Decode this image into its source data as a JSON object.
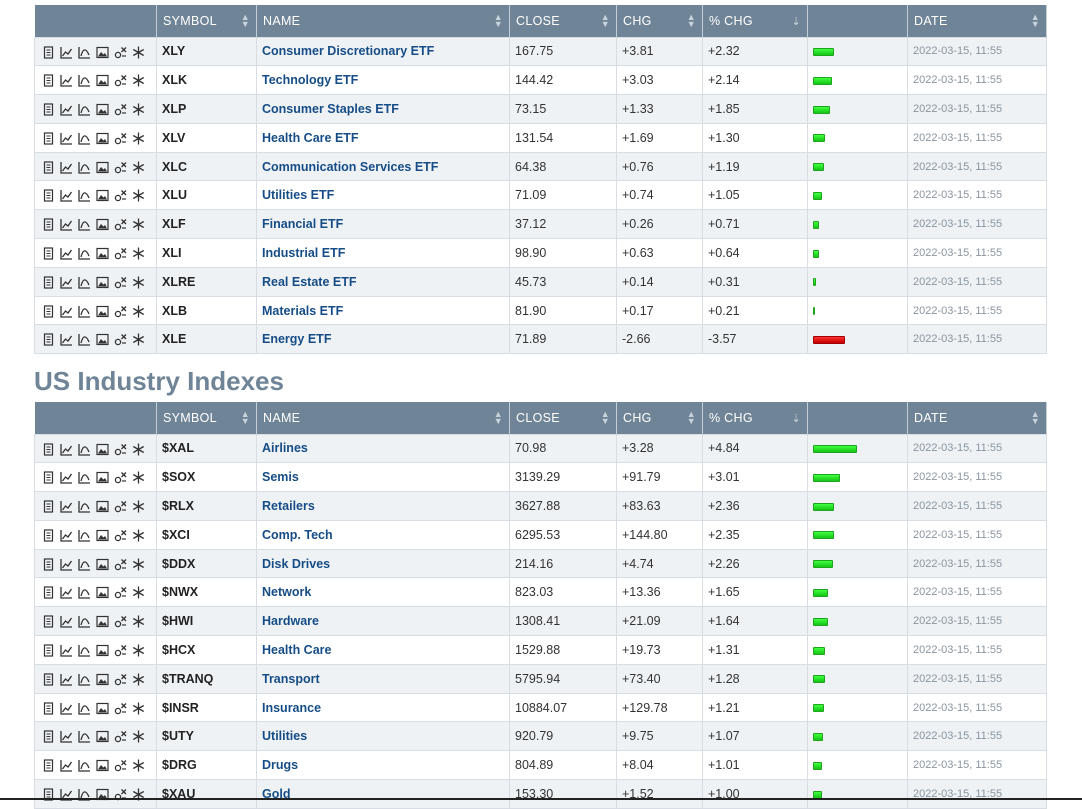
{
  "headers": {
    "symbol": "SYMBOL",
    "name": "NAME",
    "close": "CLOSE",
    "chg": "CHG",
    "pct_chg": "% CHG",
    "date": "DATE"
  },
  "row_icons": [
    "quote-icon",
    "chart-icon",
    "technical-chart-icon",
    "image-chart-icon",
    "options-icon",
    "snowflake-icon"
  ],
  "colors": {
    "header_bg": "#6f8597",
    "link": "#164d86",
    "bar_positive": "#22dd22",
    "bar_negative": "#dd0000"
  },
  "sector_etfs": {
    "rows": [
      {
        "symbol": "XLY",
        "name": "Consumer Discretionary ETF",
        "close": "167.75",
        "chg": "+3.81",
        "pct": "+2.32",
        "pct_value": 2.32,
        "date": "2022-03-15, 11:55"
      },
      {
        "symbol": "XLK",
        "name": "Technology ETF",
        "close": "144.42",
        "chg": "+3.03",
        "pct": "+2.14",
        "pct_value": 2.14,
        "date": "2022-03-15, 11:55"
      },
      {
        "symbol": "XLP",
        "name": "Consumer Staples ETF",
        "close": "73.15",
        "chg": "+1.33",
        "pct": "+1.85",
        "pct_value": 1.85,
        "date": "2022-03-15, 11:55"
      },
      {
        "symbol": "XLV",
        "name": "Health Care ETF",
        "close": "131.54",
        "chg": "+1.69",
        "pct": "+1.30",
        "pct_value": 1.3,
        "date": "2022-03-15, 11:55"
      },
      {
        "symbol": "XLC",
        "name": "Communication Services ETF",
        "close": "64.38",
        "chg": "+0.76",
        "pct": "+1.19",
        "pct_value": 1.19,
        "date": "2022-03-15, 11:55"
      },
      {
        "symbol": "XLU",
        "name": "Utilities ETF",
        "close": "71.09",
        "chg": "+0.74",
        "pct": "+1.05",
        "pct_value": 1.05,
        "date": "2022-03-15, 11:55"
      },
      {
        "symbol": "XLF",
        "name": "Financial ETF",
        "close": "37.12",
        "chg": "+0.26",
        "pct": "+0.71",
        "pct_value": 0.71,
        "date": "2022-03-15, 11:55"
      },
      {
        "symbol": "XLI",
        "name": "Industrial ETF",
        "close": "98.90",
        "chg": "+0.63",
        "pct": "+0.64",
        "pct_value": 0.64,
        "date": "2022-03-15, 11:55"
      },
      {
        "symbol": "XLRE",
        "name": "Real Estate ETF",
        "close": "45.73",
        "chg": "+0.14",
        "pct": "+0.31",
        "pct_value": 0.31,
        "date": "2022-03-15, 11:55"
      },
      {
        "symbol": "XLB",
        "name": "Materials ETF",
        "close": "81.90",
        "chg": "+0.17",
        "pct": "+0.21",
        "pct_value": 0.21,
        "date": "2022-03-15, 11:55"
      },
      {
        "symbol": "XLE",
        "name": "Energy ETF",
        "close": "71.89",
        "chg": "-2.66",
        "pct": "-3.57",
        "pct_value": -3.57,
        "date": "2022-03-15, 11:55"
      }
    ]
  },
  "industry": {
    "title": "US Industry Indexes",
    "rows": [
      {
        "symbol": "$XAL",
        "name": "Airlines",
        "close": "70.98",
        "chg": "+3.28",
        "pct": "+4.84",
        "pct_value": 4.84,
        "date": "2022-03-15, 11:55"
      },
      {
        "symbol": "$SOX",
        "name": "Semis",
        "close": "3139.29",
        "chg": "+91.79",
        "pct": "+3.01",
        "pct_value": 3.01,
        "date": "2022-03-15, 11:55"
      },
      {
        "symbol": "$RLX",
        "name": "Retailers",
        "close": "3627.88",
        "chg": "+83.63",
        "pct": "+2.36",
        "pct_value": 2.36,
        "date": "2022-03-15, 11:55"
      },
      {
        "symbol": "$XCI",
        "name": "Comp. Tech",
        "close": "6295.53",
        "chg": "+144.80",
        "pct": "+2.35",
        "pct_value": 2.35,
        "date": "2022-03-15, 11:55"
      },
      {
        "symbol": "$DDX",
        "name": "Disk Drives",
        "close": "214.16",
        "chg": "+4.74",
        "pct": "+2.26",
        "pct_value": 2.26,
        "date": "2022-03-15, 11:55"
      },
      {
        "symbol": "$NWX",
        "name": "Network",
        "close": "823.03",
        "chg": "+13.36",
        "pct": "+1.65",
        "pct_value": 1.65,
        "date": "2022-03-15, 11:55"
      },
      {
        "symbol": "$HWI",
        "name": "Hardware",
        "close": "1308.41",
        "chg": "+21.09",
        "pct": "+1.64",
        "pct_value": 1.64,
        "date": "2022-03-15, 11:55"
      },
      {
        "symbol": "$HCX",
        "name": "Health Care",
        "close": "1529.88",
        "chg": "+19.73",
        "pct": "+1.31",
        "pct_value": 1.31,
        "date": "2022-03-15, 11:55"
      },
      {
        "symbol": "$TRANQ",
        "name": "Transport",
        "close": "5795.94",
        "chg": "+73.40",
        "pct": "+1.28",
        "pct_value": 1.28,
        "date": "2022-03-15, 11:55"
      },
      {
        "symbol": "$INSR",
        "name": "Insurance",
        "close": "10884.07",
        "chg": "+129.78",
        "pct": "+1.21",
        "pct_value": 1.21,
        "date": "2022-03-15, 11:55"
      },
      {
        "symbol": "$UTY",
        "name": "Utilities",
        "close": "920.79",
        "chg": "+9.75",
        "pct": "+1.07",
        "pct_value": 1.07,
        "date": "2022-03-15, 11:55"
      },
      {
        "symbol": "$DRG",
        "name": "Drugs",
        "close": "804.89",
        "chg": "+8.04",
        "pct": "+1.01",
        "pct_value": 1.01,
        "date": "2022-03-15, 11:55"
      },
      {
        "symbol": "$XAU",
        "name": "Gold",
        "close": "153.30",
        "chg": "+1.52",
        "pct": "+1.00",
        "pct_value": 1.0,
        "date": "2022-03-15, 11:55"
      }
    ]
  }
}
